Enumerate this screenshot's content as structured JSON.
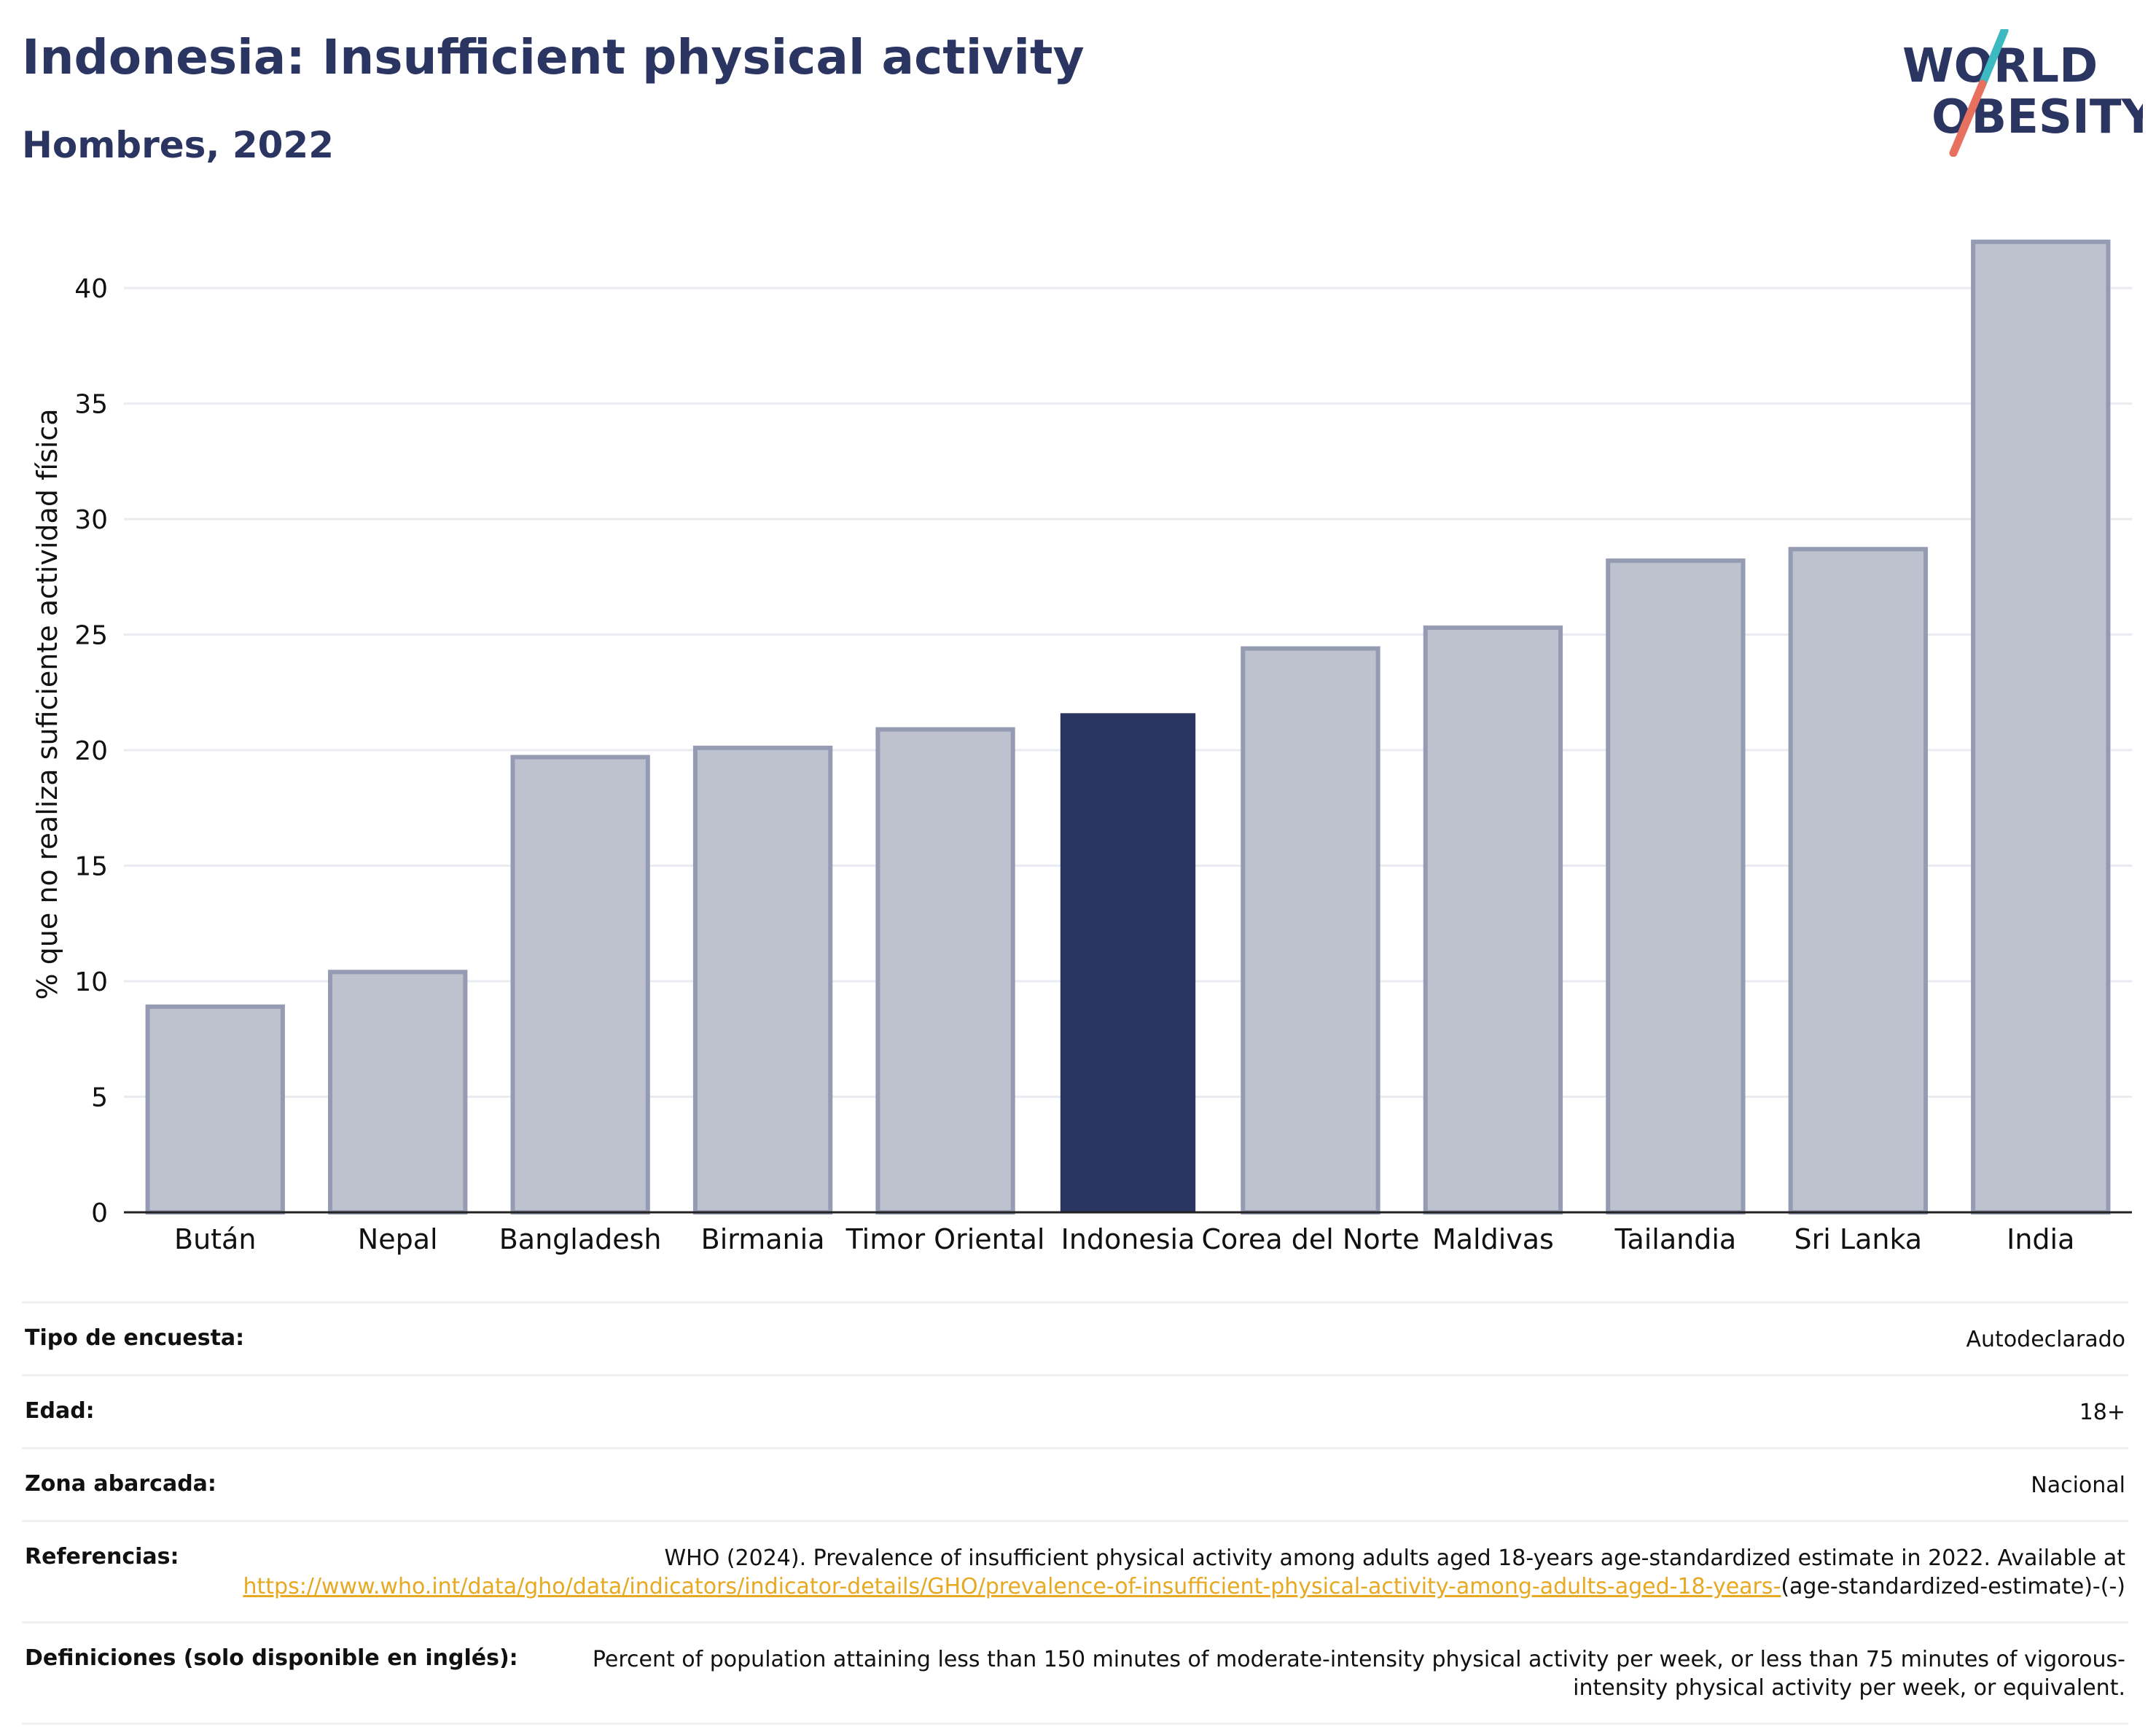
{
  "header": {
    "title": "Indonesia: Insufficient physical activity",
    "subtitle": "Hombres, 2022"
  },
  "logo": {
    "line1": "WORLD",
    "line2": "OBESITY"
  },
  "colors": {
    "highlight": "#2b3562",
    "bar": "#bec2cf",
    "bar_border": "#959bb2",
    "accent_teal": "#3cb9c1",
    "accent_coral": "#e8705e",
    "link": "#e8a922"
  },
  "chart_data": {
    "type": "bar",
    "title": "",
    "xlabel": "",
    "ylabel": "% que no realiza suficiente actividad física",
    "categories": [
      "Bután",
      "Nepal",
      "Bangladesh",
      "Birmania",
      "Timor Oriental",
      "Indonesia",
      "Corea del Norte",
      "Maldivas",
      "Tailandia",
      "Sri Lanka",
      "India"
    ],
    "values": [
      8.9,
      10.4,
      19.7,
      20.1,
      20.9,
      21.6,
      24.4,
      25.3,
      28.2,
      28.7,
      42.0
    ],
    "highlight": "Indonesia",
    "ylim": [
      0,
      43
    ],
    "yticks": [
      0,
      5,
      10,
      15,
      20,
      25,
      30,
      35,
      40
    ],
    "grid": true
  },
  "meta": {
    "survey_label": "Tipo de encuesta:",
    "survey_value": "Autodeclarado",
    "age_label": "Edad:",
    "age_value": "18+",
    "area_label": "Zona abarcada:",
    "area_value": "Nacional",
    "refs_label": "Referencias:",
    "refs_text": "WHO (2024). Prevalence of insufficient physical activity among adults aged 18-years age-standardized estimate in 2022. Available at",
    "refs_link": "https://www.who.int/data/gho/data/indicators/indicator-details/GHO/prevalence-of-insufficient-physical-activity-among-adults-aged-18-years-",
    "refs_tail": "(age-standardized-estimate)-(-)",
    "def_label": "Definiciones (solo disponible en inglés):",
    "def_text": "Percent of population attaining less than 150 minutes of moderate-intensity physical activity per week, or less than 75 minutes of vigorous-intensity physical activity per week, or equivalent."
  }
}
